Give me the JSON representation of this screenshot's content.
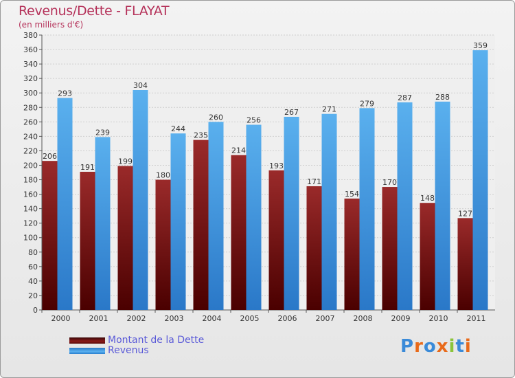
{
  "chart_data": {
    "type": "bar",
    "title": "Revenus/Dette - FLAYAT",
    "subtitle": "(en milliers d'€)",
    "categories": [
      "2000",
      "2001",
      "2002",
      "2003",
      "2004",
      "2005",
      "2006",
      "2007",
      "2008",
      "2009",
      "2010",
      "2011"
    ],
    "series": [
      {
        "name": "Montant de la Dette",
        "values": [
          206,
          191,
          199,
          180,
          235,
          214,
          193,
          171,
          154,
          170,
          148,
          127
        ],
        "color": "#8b1a1a"
      },
      {
        "name": "Revenus",
        "values": [
          293,
          239,
          304,
          244,
          260,
          256,
          267,
          271,
          279,
          287,
          288,
          359
        ],
        "color": "#4a9fe0"
      }
    ],
    "ylim": [
      0,
      380
    ],
    "ytick_step": 20,
    "grid": true,
    "legend_position": "bottom-left"
  },
  "logo": {
    "text": "Proxiti",
    "letter_colors": [
      "#3a8ad8",
      "#e86a1a",
      "#3a8ad8",
      "#e86a1a",
      "#8ac43a",
      "#3a8ad8",
      "#e86a1a"
    ]
  }
}
